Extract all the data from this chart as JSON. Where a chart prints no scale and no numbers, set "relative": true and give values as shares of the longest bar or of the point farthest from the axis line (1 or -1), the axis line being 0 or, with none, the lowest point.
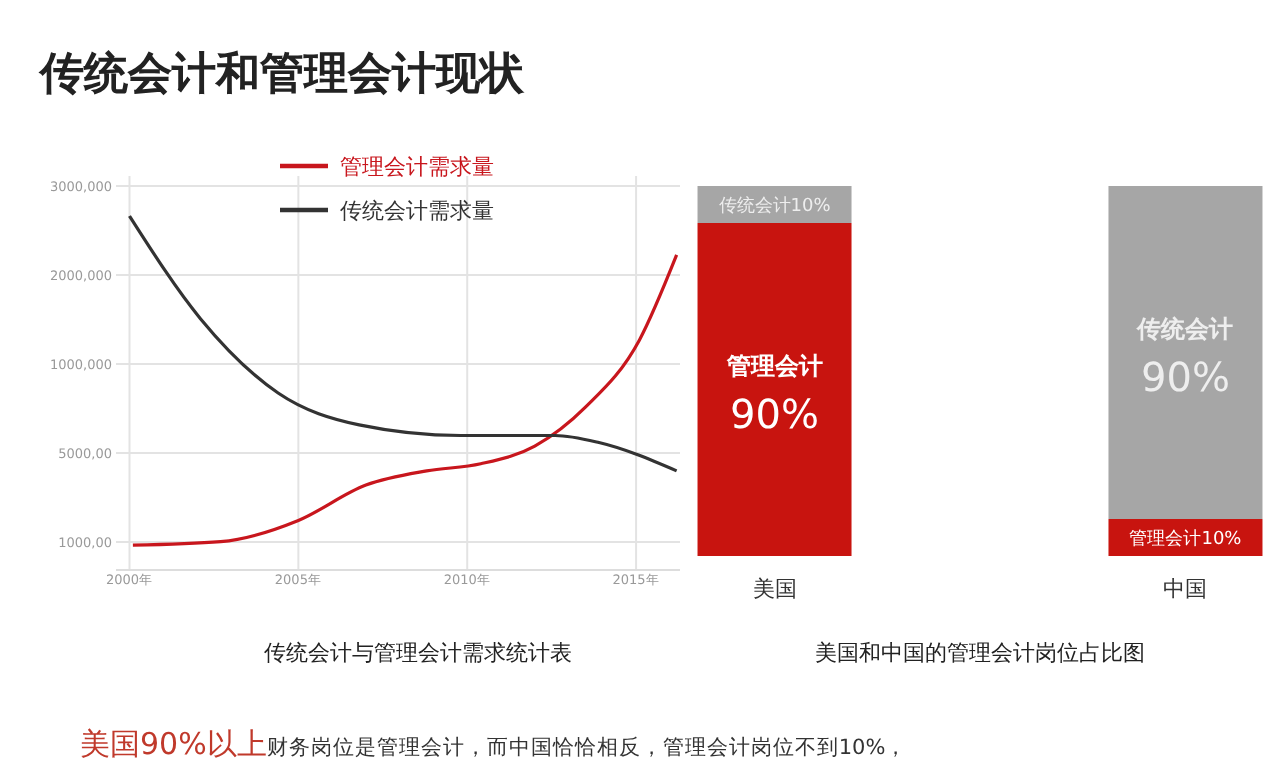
{
  "chart_data": [
    {
      "type": "line",
      "title": "传统会计和管理会计现状",
      "xlabel": "传统会计与管理会计需求统计表",
      "relative": true,
      "x": [
        2000,
        2002.1,
        2004.4,
        2006.8,
        2009.8,
        2012.6,
        2013.9,
        2016.2
      ],
      "series": [
        {
          "name": "管理会计需求量",
          "color": "#c8161d",
          "x": [
            2000.1,
            2002.7,
            2005.0,
            2007.0,
            2008.8,
            2010.4,
            2012.0,
            2013.5,
            2015.1,
            2016.2
          ],
          "values": [
            0.07,
            0.08,
            0.14,
            0.24,
            0.28,
            0.3,
            0.35,
            0.46,
            0.65,
            0.89
          ]
        },
        {
          "name": "传统会计需求量",
          "color": "#333333",
          "values": [
            1,
            0.71,
            0.5,
            0.41,
            0.38,
            0.38,
            0.36,
            0.28
          ]
        }
      ],
      "xlim": [
        1999.6,
        2016.3
      ],
      "xticks": [
        {
          "value": 2000,
          "label": "2000年"
        },
        {
          "value": 2005,
          "label": "2005年"
        },
        {
          "value": 2010,
          "label": "2010年"
        },
        {
          "value": 2015,
          "label": "2015年"
        }
      ],
      "grid": true,
      "legend": "top",
      "marker": "none",
      "line_style": "solid",
      "annotations": [
        "3000,000",
        "2000,000",
        "1000,000",
        "5000,00",
        "1000,00"
      ]
    },
    {
      "type": "bar",
      "xlabel": "美国和中国的管理会计岗位占比图",
      "categories": [
        "美国",
        "中国"
      ],
      "stacked": true,
      "ylim": [
        0,
        100
      ],
      "tick_labels": "x",
      "series": [
        {
          "color": "#c8140f",
          "values": [
            90,
            10
          ],
          "value_labels": [
            "管理会计\n90%",
            "管理会计10%"
          ]
        },
        {
          "color": "#a6a6a6",
          "values": [
            10,
            90
          ],
          "value_labels": [
            "传统会计10%",
            "传统会计\n90%"
          ]
        }
      ],
      "annotations": [
        "美国90%以上",
        "财务岗位是管理会计，而中国恰恰相反，管理会计岗位不到10%，"
      ]
    }
  ]
}
